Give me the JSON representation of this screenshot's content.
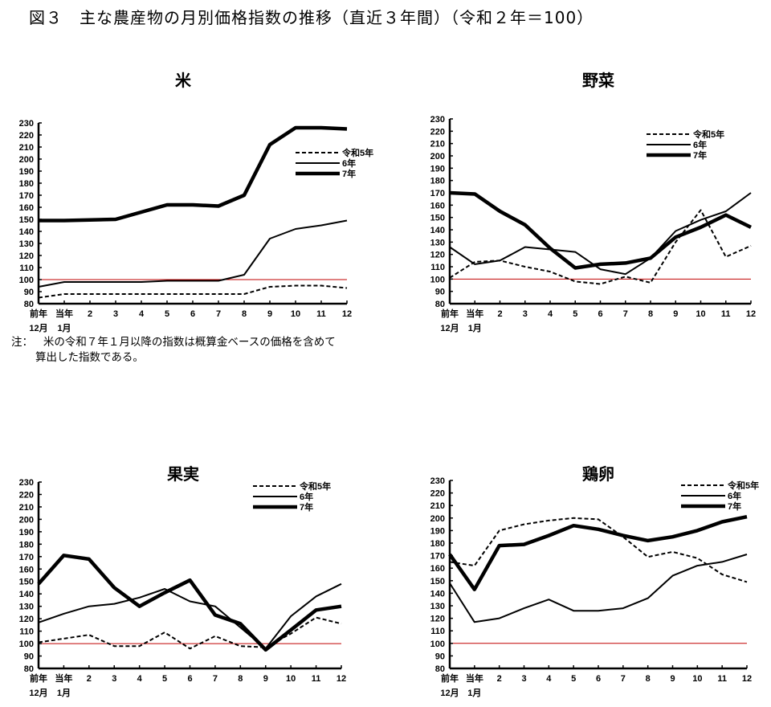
{
  "figure_title": "図３　主な農産物の月別価格指数の推移（直近３年間）（令和２年＝100）",
  "note": {
    "label": "注：",
    "line1": "米の令和７年１月以降の指数は概算金ベースの価格を含めて",
    "line2": "算出した指数である。"
  },
  "colors": {
    "reference_line": "#c00000",
    "series": "#000000"
  },
  "chart_data": [
    {
      "type": "line",
      "title": "米",
      "categories": [
        "前年 12月",
        "当年 1月",
        "2",
        "3",
        "4",
        "5",
        "6",
        "7",
        "8",
        "9",
        "10",
        "11",
        "12"
      ],
      "ylim": [
        80,
        230
      ],
      "yticks": [
        80,
        90,
        100,
        110,
        120,
        130,
        140,
        150,
        160,
        170,
        180,
        190,
        200,
        210,
        220,
        230
      ],
      "reference_line": 100,
      "legend": "top-right",
      "grid": false,
      "series": [
        {
          "name": "令和5年",
          "style": "dashed",
          "values": [
            85,
            88,
            88,
            88,
            88,
            88,
            88,
            88,
            88,
            94,
            95,
            95,
            93
          ]
        },
        {
          "name": "6年",
          "style": "thin",
          "values": [
            94,
            98,
            98,
            98,
            98,
            99,
            99,
            99,
            104,
            134,
            142,
            145,
            149
          ]
        },
        {
          "name": "7年",
          "style": "thick",
          "values": [
            149,
            149,
            149.5,
            150,
            156,
            162,
            162,
            161,
            170,
            212,
            226,
            226,
            225
          ]
        }
      ]
    },
    {
      "type": "line",
      "title": "野菜",
      "categories": [
        "前年 12月",
        "当年 1月",
        "2",
        "3",
        "4",
        "5",
        "6",
        "7",
        "8",
        "9",
        "10",
        "11",
        "12"
      ],
      "ylim": [
        80,
        230
      ],
      "yticks": [
        80,
        90,
        100,
        110,
        120,
        130,
        140,
        150,
        160,
        170,
        180,
        190,
        200,
        210,
        220,
        230
      ],
      "reference_line": 100,
      "legend": "top-right",
      "grid": false,
      "series": [
        {
          "name": "令和5年",
          "style": "dashed",
          "values": [
            101,
            114,
            115,
            110,
            106,
            98,
            96,
            102,
            97,
            130,
            156,
            118,
            127
          ]
        },
        {
          "name": "6年",
          "style": "thin",
          "values": [
            126,
            112,
            115,
            126,
            124,
            122,
            108,
            104,
            117,
            139,
            148,
            155,
            170
          ]
        },
        {
          "name": "7年",
          "style": "thick",
          "values": [
            170,
            169,
            155,
            144,
            125,
            109,
            112,
            113,
            117,
            134,
            142,
            152,
            142
          ]
        }
      ]
    },
    {
      "type": "line",
      "title": "果実",
      "categories": [
        "前年 12月",
        "当年 1月",
        "2",
        "3",
        "4",
        "5",
        "6",
        "7",
        "8",
        "9",
        "10",
        "11",
        "12"
      ],
      "ylim": [
        80,
        230
      ],
      "yticks": [
        80,
        90,
        100,
        110,
        120,
        130,
        140,
        150,
        160,
        170,
        180,
        190,
        200,
        210,
        220,
        230
      ],
      "reference_line": 100,
      "legend": "top-right",
      "grid": false,
      "series": [
        {
          "name": "令和5年",
          "style": "dashed",
          "values": [
            101,
            104,
            107,
            98,
            98,
            109,
            96,
            106,
            98,
            97,
            108,
            121,
            116
          ]
        },
        {
          "name": "6年",
          "style": "thin",
          "values": [
            117,
            124,
            130,
            132,
            137,
            144,
            134,
            130,
            113,
            96,
            122,
            138,
            148
          ]
        },
        {
          "name": "7年",
          "style": "thick",
          "values": [
            148,
            171,
            168,
            145,
            130,
            141,
            151,
            123,
            116,
            95,
            111,
            127,
            130
          ]
        }
      ]
    },
    {
      "type": "line",
      "title": "鶏卵",
      "categories": [
        "前年 12月",
        "当年 1月",
        "2",
        "3",
        "4",
        "5",
        "6",
        "7",
        "8",
        "9",
        "10",
        "11",
        "12"
      ],
      "ylim": [
        80,
        230
      ],
      "yticks": [
        80,
        90,
        100,
        110,
        120,
        130,
        140,
        150,
        160,
        170,
        180,
        190,
        200,
        210,
        220,
        230
      ],
      "reference_line": 100,
      "legend": "top-right",
      "grid": false,
      "series": [
        {
          "name": "令和5年",
          "style": "dashed",
          "values": [
            165,
            162,
            190,
            195,
            198,
            200,
            199,
            185,
            169,
            173,
            168,
            155,
            149
          ]
        },
        {
          "name": "6年",
          "style": "thin",
          "values": [
            148,
            117,
            120,
            128,
            135,
            126,
            126,
            128,
            136,
            154,
            162,
            165,
            171
          ]
        },
        {
          "name": "7年",
          "style": "thick",
          "values": [
            171,
            143,
            178,
            179,
            186,
            194,
            191,
            186,
            182,
            185,
            190,
            197,
            201
          ]
        }
      ]
    }
  ]
}
